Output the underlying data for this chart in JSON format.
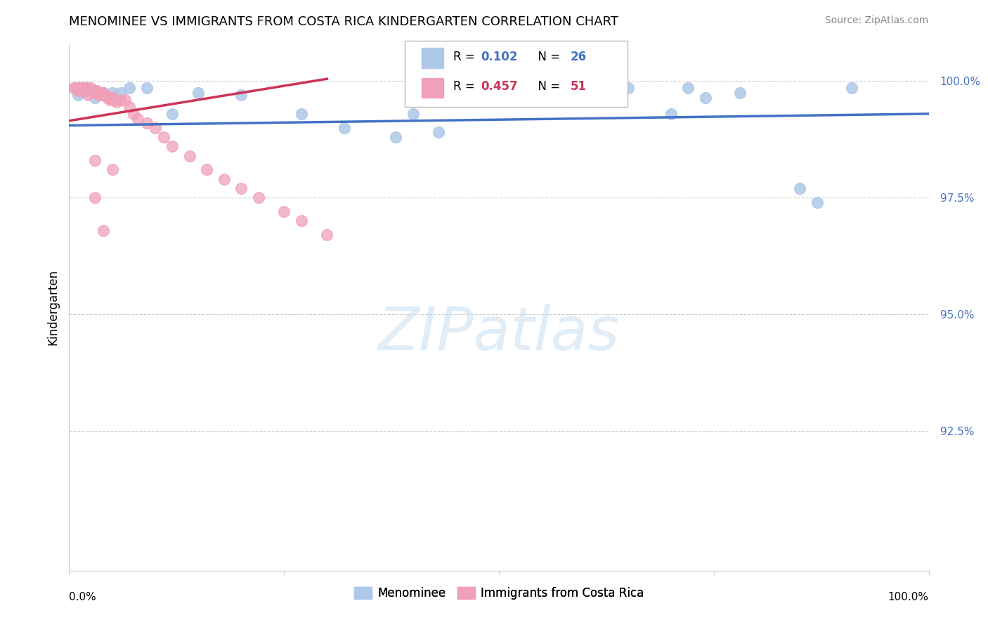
{
  "title": "MENOMINEE VS IMMIGRANTS FROM COSTA RICA KINDERGARTEN CORRELATION CHART",
  "source": "Source: ZipAtlas.com",
  "ylabel_left": "Kindergarten",
  "watermark": "ZIPatlas",
  "legend_blue_r": "0.102",
  "legend_blue_n": "26",
  "legend_pink_r": "0.457",
  "legend_pink_n": "51",
  "xlim": [
    0.0,
    1.0
  ],
  "ylim": [
    0.895,
    1.008
  ],
  "yticks": [
    0.925,
    0.95,
    0.975,
    1.0
  ],
  "ytick_labels": [
    "92.5%",
    "95.0%",
    "97.5%",
    "100.0%"
  ],
  "blue_color": "#adc8e8",
  "pink_color": "#f0a0b8",
  "blue_line_color": "#4472c4",
  "pink_line_color": "#cc3355",
  "blue_scatter_x": [
    0.01,
    0.02,
    0.03,
    0.04,
    0.05,
    0.06,
    0.07,
    0.09,
    0.12,
    0.15,
    0.2,
    0.27,
    0.32,
    0.38,
    0.4,
    0.43,
    0.52,
    0.58,
    0.65,
    0.7,
    0.72,
    0.74,
    0.78,
    0.85,
    0.87,
    0.91
  ],
  "blue_scatter_y": [
    0.997,
    0.9985,
    0.9965,
    0.9975,
    0.9975,
    0.9975,
    0.9985,
    0.9985,
    0.993,
    0.9975,
    0.997,
    0.993,
    0.99,
    0.988,
    0.993,
    0.989,
    0.9985,
    0.9985,
    0.9985,
    0.993,
    0.9985,
    0.9965,
    0.9975,
    0.977,
    0.974,
    0.9985
  ],
  "pink_scatter_x": [
    0.005,
    0.007,
    0.009,
    0.01,
    0.01,
    0.012,
    0.014,
    0.015,
    0.016,
    0.018,
    0.018,
    0.02,
    0.02,
    0.022,
    0.025,
    0.025,
    0.027,
    0.03,
    0.03,
    0.032,
    0.035,
    0.038,
    0.04,
    0.04,
    0.042,
    0.045,
    0.047,
    0.05,
    0.052,
    0.055,
    0.06,
    0.065,
    0.07,
    0.075,
    0.08,
    0.09,
    0.1,
    0.11,
    0.12,
    0.14,
    0.16,
    0.18,
    0.2,
    0.22,
    0.25,
    0.27,
    0.3,
    0.03,
    0.05,
    0.03,
    0.04
  ],
  "pink_scatter_y": [
    0.9985,
    0.9985,
    0.9985,
    0.9985,
    0.998,
    0.9985,
    0.998,
    0.9985,
    0.998,
    0.998,
    0.9985,
    0.9985,
    0.998,
    0.997,
    0.9985,
    0.998,
    0.998,
    0.9975,
    0.998,
    0.998,
    0.997,
    0.997,
    0.9975,
    0.997,
    0.997,
    0.9965,
    0.996,
    0.9965,
    0.996,
    0.9955,
    0.996,
    0.996,
    0.9945,
    0.993,
    0.992,
    0.991,
    0.99,
    0.988,
    0.986,
    0.984,
    0.981,
    0.979,
    0.977,
    0.975,
    0.972,
    0.97,
    0.967,
    0.983,
    0.981,
    0.975,
    0.968
  ],
  "blue_trend_x": [
    0.0,
    1.0
  ],
  "blue_trend_y": [
    0.9905,
    0.993
  ],
  "pink_trend_x": [
    0.0,
    0.3
  ],
  "pink_trend_y": [
    0.9915,
    1.0005
  ],
  "xtick_positions": [
    0.0,
    0.25,
    0.5,
    0.75,
    1.0
  ],
  "bottom_legend_labels": [
    "Menominee",
    "Immigrants from Costa Rica"
  ],
  "grid_color": "#cccccc",
  "spine_color": "#cccccc"
}
